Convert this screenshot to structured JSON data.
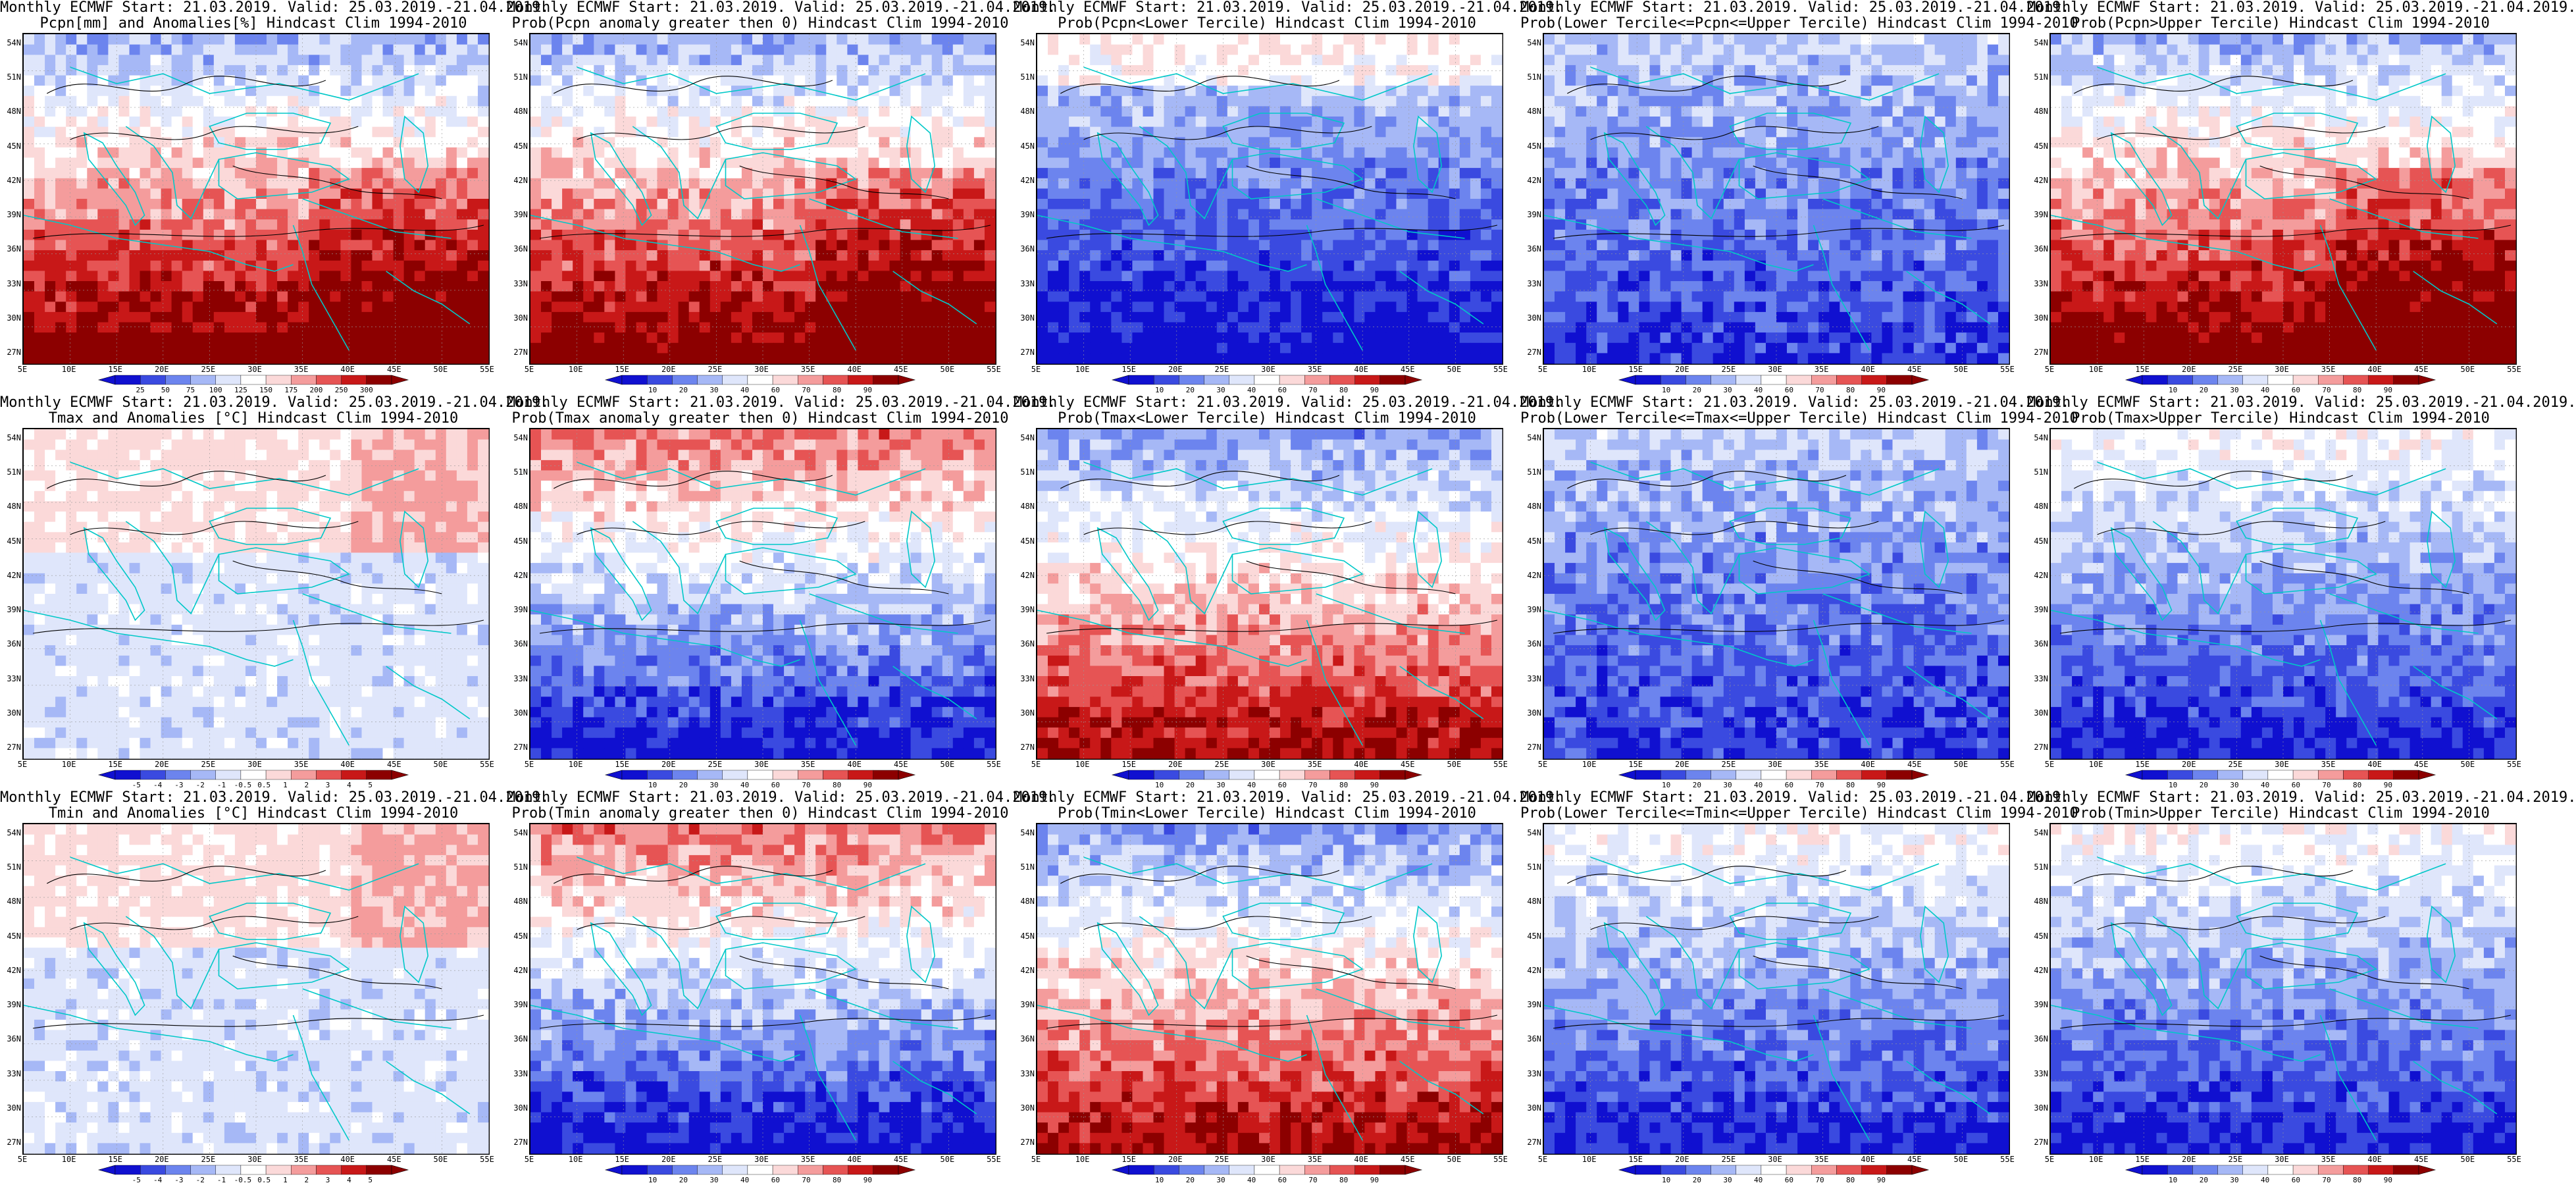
{
  "lat_ticks": [
    "54N",
    "51N",
    "48N",
    "45N",
    "42N",
    "39N",
    "36N",
    "33N",
    "30N",
    "27N"
  ],
  "lon_ticks": [
    "5E",
    "10E",
    "15E",
    "20E",
    "25E",
    "30E",
    "35E",
    "40E",
    "45E",
    "50E",
    "55E"
  ],
  "colors": {
    "coast": "#00c8c8",
    "contour": "#000000",
    "prob_scale": [
      "#1010d0",
      "#3a4ae0",
      "#6c84ee",
      "#a6b8f6",
      "#dfe6fb",
      "#ffffff",
      "#fbd9d9",
      "#f49c9c",
      "#e65454",
      "#c81818",
      "#8c0000"
    ],
    "anom_scale": [
      "#1010d0",
      "#3a4ae0",
      "#6c84ee",
      "#a6b8f6",
      "#dfe6fb",
      "#ffffff",
      "#fbd9d9",
      "#f49c9c",
      "#e65454",
      "#c81818",
      "#8c0000"
    ]
  },
  "panels": [
    {
      "row": 0,
      "col": 0,
      "line1": "Monthly ECMWF Start: 21.03.2019. Valid: 25.03.2019.-21.04.2019.",
      "line2": "Pcpn[mm] and Anomalies[%] Hindcast Clim 1994-2010",
      "cb_ticks": [
        "25",
        "50",
        "75",
        "100",
        "125",
        "150",
        "175",
        "200",
        "250",
        "300"
      ],
      "pattern": "dry_south"
    },
    {
      "row": 0,
      "col": 1,
      "line1": "Monthly ECMWF Start: 21.03.2019. Valid: 25.03.2019.-21.04.2019.",
      "line2": "Prob(Pcpn anomaly greater then 0) Hindcast Clim 1994-2010",
      "cb_ticks": [
        "10",
        "20",
        "30",
        "40",
        "60",
        "70",
        "80",
        "90"
      ],
      "pattern": "dry_south"
    },
    {
      "row": 0,
      "col": 2,
      "line1": "Monthly ECMWF Start: 21.03.2019. Valid: 25.03.2019.-21.04.2019.",
      "line2": "Prob(Pcpn<Lower Tercile) Hindcast Clim 1994-2010",
      "cb_ticks": [
        "10",
        "20",
        "30",
        "40",
        "60",
        "70",
        "80",
        "90"
      ],
      "pattern": "blue_south"
    },
    {
      "row": 0,
      "col": 3,
      "line1": "Monthly ECMWF Start: 21.03.2019. Valid: 25.03.2019.-21.04.2019.",
      "line2": "Prob(Lower Tercile<=Pcpn<=Upper Tercile) Hindcast Clim 1994-2010",
      "cb_ticks": [
        "10",
        "20",
        "30",
        "40",
        "60",
        "70",
        "80",
        "90"
      ],
      "pattern": "blue_mixed"
    },
    {
      "row": 0,
      "col": 4,
      "line1": "Monthly ECMWF Start: 21.03.2019. Valid: 25.03.2019.-21.04.2019.",
      "line2": "Prob(Pcpn>Upper Tercile) Hindcast Clim 1994-2010",
      "cb_ticks": [
        "10",
        "20",
        "30",
        "40",
        "60",
        "70",
        "80",
        "90"
      ],
      "pattern": "dry_south"
    },
    {
      "row": 1,
      "col": 0,
      "line1": "Monthly ECMWF Start: 21.03.2019. Valid: 25.03.2019.-21.04.2019.",
      "line2": "Tmax and Anomalies [°C] Hindcast Clim 1994-2010",
      "cb_ticks": [
        "-5",
        "-4",
        "-3",
        "-2",
        "-1",
        "-0.5",
        "0.5",
        "1",
        "2",
        "3",
        "4",
        "5"
      ],
      "pattern": "anom_light"
    },
    {
      "row": 1,
      "col": 1,
      "line1": "Monthly ECMWF Start: 21.03.2019. Valid: 25.03.2019.-21.04.2019.",
      "line2": "Prob(Tmax anomaly greater then 0) Hindcast Clim 1994-2010",
      "cb_ticks": [
        "10",
        "20",
        "30",
        "40",
        "60",
        "70",
        "80",
        "90"
      ],
      "pattern": "red_north_blue_south"
    },
    {
      "row": 1,
      "col": 2,
      "line1": "Monthly ECMWF Start: 21.03.2019. Valid: 25.03.2019.-21.04.2019.",
      "line2": "Prob(Tmax<Lower Tercile) Hindcast Clim 1994-2010",
      "cb_ticks": [
        "10",
        "20",
        "30",
        "40",
        "60",
        "70",
        "80",
        "90"
      ],
      "pattern": "blue_north_red_south"
    },
    {
      "row": 1,
      "col": 3,
      "line1": "Monthly ECMWF Start: 21.03.2019. Valid: 25.03.2019.-21.04.2019.",
      "line2": "Prob(Lower Tercile<=Tmax<=Upper Tercile) Hindcast Clim 1994-2010",
      "cb_ticks": [
        "10",
        "20",
        "30",
        "40",
        "60",
        "70",
        "80",
        "90"
      ],
      "pattern": "blue_mixed"
    },
    {
      "row": 1,
      "col": 4,
      "line1": "Monthly ECMWF Start: 21.03.2019. Valid: 25.03.2019.-21.04.2019.",
      "line2": "Prob(Tmax>Upper Tercile) Hindcast Clim 1994-2010",
      "cb_ticks": [
        "10",
        "20",
        "30",
        "40",
        "60",
        "70",
        "80",
        "90"
      ],
      "pattern": "blue_south_light"
    },
    {
      "row": 2,
      "col": 0,
      "line1": "Monthly ECMWF Start: 21.03.2019. Valid: 25.03.2019.-21.04.2019.",
      "line2": "Tmin and Anomalies [°C] Hindcast Clim 1994-2010",
      "cb_ticks": [
        "-5",
        "-4",
        "-3",
        "-2",
        "-1",
        "-0.5",
        "0.5",
        "1",
        "2",
        "3",
        "4",
        "5"
      ],
      "pattern": "anom_light"
    },
    {
      "row": 2,
      "col": 1,
      "line1": "Monthly ECMWF Start: 21.03.2019. Valid: 25.03.2019.-21.04.2019.",
      "line2": "Prob(Tmin anomaly greater then 0) Hindcast Clim 1994-2010",
      "cb_ticks": [
        "10",
        "20",
        "30",
        "40",
        "60",
        "70",
        "80",
        "90"
      ],
      "pattern": "red_north_blue_south"
    },
    {
      "row": 2,
      "col": 2,
      "line1": "Monthly ECMWF Start: 21.03.2019. Valid: 25.03.2019.-21.04.2019.",
      "line2": "Prob(Tmin<Lower Tercile) Hindcast Clim 1994-2010",
      "cb_ticks": [
        "10",
        "20",
        "30",
        "40",
        "60",
        "70",
        "80",
        "90"
      ],
      "pattern": "blue_north_red_south"
    },
    {
      "row": 2,
      "col": 3,
      "line1": "Monthly ECMWF Start: 21.03.2019. Valid: 25.03.2019.-21.04.2019.",
      "line2": "Prob(Lower Tercile<=Tmin<=Upper Tercile) Hindcast Clim 1994-2010",
      "cb_ticks": [
        "10",
        "20",
        "30",
        "40",
        "60",
        "70",
        "80",
        "90"
      ],
      "pattern": "blue_south_light"
    },
    {
      "row": 2,
      "col": 4,
      "line1": "Monthly ECMWF Start: 21.03.2019. Valid: 25.03.2019.-21.04.2019.",
      "line2": "Prob(Tmin>Upper Tercile) Hindcast Clim 1994-2010",
      "cb_ticks": [
        "10",
        "20",
        "30",
        "40",
        "60",
        "70",
        "80",
        "90"
      ],
      "pattern": "blue_south_light"
    }
  ]
}
